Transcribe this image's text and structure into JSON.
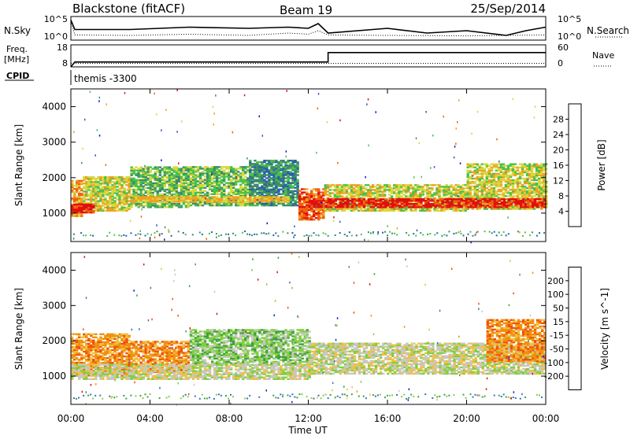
{
  "chart_data": [
    {
      "type": "line",
      "name": "header",
      "title_left": "Blackstone (fitACF)",
      "title_center": "Beam 19",
      "title_right": "25/Sep/2014"
    },
    {
      "type": "line",
      "panel": "noise",
      "left_label": "N.Sky",
      "right_label": "N.Search",
      "left_ticks": [
        "10^5",
        "10^0"
      ],
      "right_ticks": [
        "10^5",
        "10^0"
      ],
      "series": [
        {
          "style": "solid",
          "x": [
            0,
            0.2,
            3,
            6,
            9,
            11,
            12,
            12.5,
            13,
            16,
            18,
            20,
            22,
            23,
            24
          ],
          "y": [
            0.15,
            0.55,
            0.55,
            0.45,
            0.5,
            0.45,
            0.5,
            0.3,
            0.7,
            0.5,
            0.7,
            0.6,
            0.8,
            0.6,
            0.45
          ]
        },
        {
          "style": "dotted",
          "x": [
            0,
            0.2,
            3,
            6,
            9,
            11,
            12,
            12.5,
            13,
            16,
            20,
            24
          ],
          "y": [
            0.2,
            0.78,
            0.8,
            0.75,
            0.8,
            0.7,
            0.75,
            0.6,
            0.78,
            0.8,
            0.82,
            0.78
          ]
        }
      ]
    },
    {
      "type": "line",
      "panel": "frequency",
      "left_label_1": "Freq.",
      "left_label_2": "[MHz]",
      "right_label": "Nave",
      "left_ticks": [
        "18",
        "8"
      ],
      "right_ticks": [
        "60",
        "0"
      ],
      "series": [
        {
          "style": "solid",
          "x": [
            0,
            0.2,
            13,
            13,
            24
          ],
          "y": [
            8,
            10.2,
            10.2,
            14.5,
            14.5
          ]
        },
        {
          "style": "dotted",
          "x": [
            0,
            24
          ],
          "y": [
            9.6,
            9.6
          ]
        }
      ]
    },
    {
      "type": "table",
      "panel": "cpid",
      "label": "CPID",
      "value": "themis -3300"
    },
    {
      "type": "heatmap",
      "panel": "power",
      "ylabel": "Slant Range [km]",
      "yticks": [
        1000,
        2000,
        3000,
        4000
      ],
      "ylim": [
        200,
        4500
      ],
      "colorbar_label": "Power [dB]",
      "colorbar_ticks": [
        "4",
        "8",
        "12",
        "16",
        "20",
        "24",
        "28"
      ],
      "colors": [
        "#1010e0",
        "#2a5cb0",
        "#3c8c6a",
        "#4cc04c",
        "#d8d840",
        "#f0a020",
        "#f06010",
        "#e01010"
      ],
      "bands": [
        {
          "t0": 0.0,
          "t1": 0.6,
          "r0": 900,
          "r1": 1900,
          "level": 5
        },
        {
          "t0": 0.6,
          "t1": 3.0,
          "r0": 1050,
          "r1": 2000,
          "level": 4
        },
        {
          "t0": 3.0,
          "t1": 6.0,
          "r0": 1150,
          "r1": 2300,
          "level": 3
        },
        {
          "t0": 6.0,
          "t1": 9.0,
          "r0": 1200,
          "r1": 2300,
          "level": 3
        },
        {
          "t0": 9.0,
          "t1": 11.5,
          "r0": 1200,
          "r1": 2500,
          "level": 2
        },
        {
          "t0": 11.5,
          "t1": 12.8,
          "r0": 800,
          "r1": 1700,
          "level": 6
        },
        {
          "t0": 12.8,
          "t1": 20.0,
          "r0": 1050,
          "r1": 1800,
          "level": 4
        },
        {
          "t0": 20.0,
          "t1": 24.0,
          "r0": 1100,
          "r1": 2400,
          "level": 4
        }
      ],
      "cores": [
        {
          "t0": 0.0,
          "t1": 1.2,
          "r0": 1000,
          "r1": 1250,
          "level": 7
        },
        {
          "t0": 12.0,
          "t1": 24.0,
          "r0": 1150,
          "r1": 1380,
          "level": 7
        },
        {
          "t0": 3.0,
          "t1": 11.0,
          "r0": 1300,
          "r1": 1450,
          "level": 5
        }
      ]
    },
    {
      "type": "heatmap",
      "panel": "velocity",
      "ylabel": "Slant Range [km]",
      "yticks": [
        1000,
        2000,
        3000,
        4000
      ],
      "ylim": [
        200,
        4500
      ],
      "colorbar_label": "Velocity [m s^-1]",
      "colorbar_ticks": [
        "200",
        "100",
        "50",
        "15",
        "-15",
        "-50",
        "-100",
        "-200"
      ],
      "colors": [
        "#1020c0",
        "#3a70c0",
        "#40a040",
        "#80d040",
        "#c8c8c0",
        "#f0c040",
        "#f09010",
        "#f05010",
        "#e01010"
      ],
      "bands": [
        {
          "t0": 0.0,
          "t1": 3.0,
          "r0": 1000,
          "r1": 2200,
          "level": 6
        },
        {
          "t0": 3.0,
          "t1": 6.0,
          "r0": 1100,
          "r1": 2000,
          "level": 6
        },
        {
          "t0": 6.0,
          "t1": 12.0,
          "r0": 1300,
          "r1": 2300,
          "level": 3
        },
        {
          "t0": 12.0,
          "t1": 24.0,
          "r0": 1050,
          "r1": 1950,
          "level": 4
        },
        {
          "t0": 0.0,
          "t1": 12.0,
          "r0": 900,
          "r1": 1350,
          "level": 4
        },
        {
          "t0": 21.0,
          "t1": 24.0,
          "r0": 1400,
          "r1": 2600,
          "level": 6
        }
      ],
      "cores": []
    },
    {
      "type": "line",
      "panel": "x-axis",
      "xlabel": "Time UT",
      "xticks": [
        "00:00",
        "04:00",
        "08:00",
        "12:00",
        "16:00",
        "20:00",
        "00:00"
      ],
      "xlim": [
        0,
        24
      ]
    }
  ]
}
